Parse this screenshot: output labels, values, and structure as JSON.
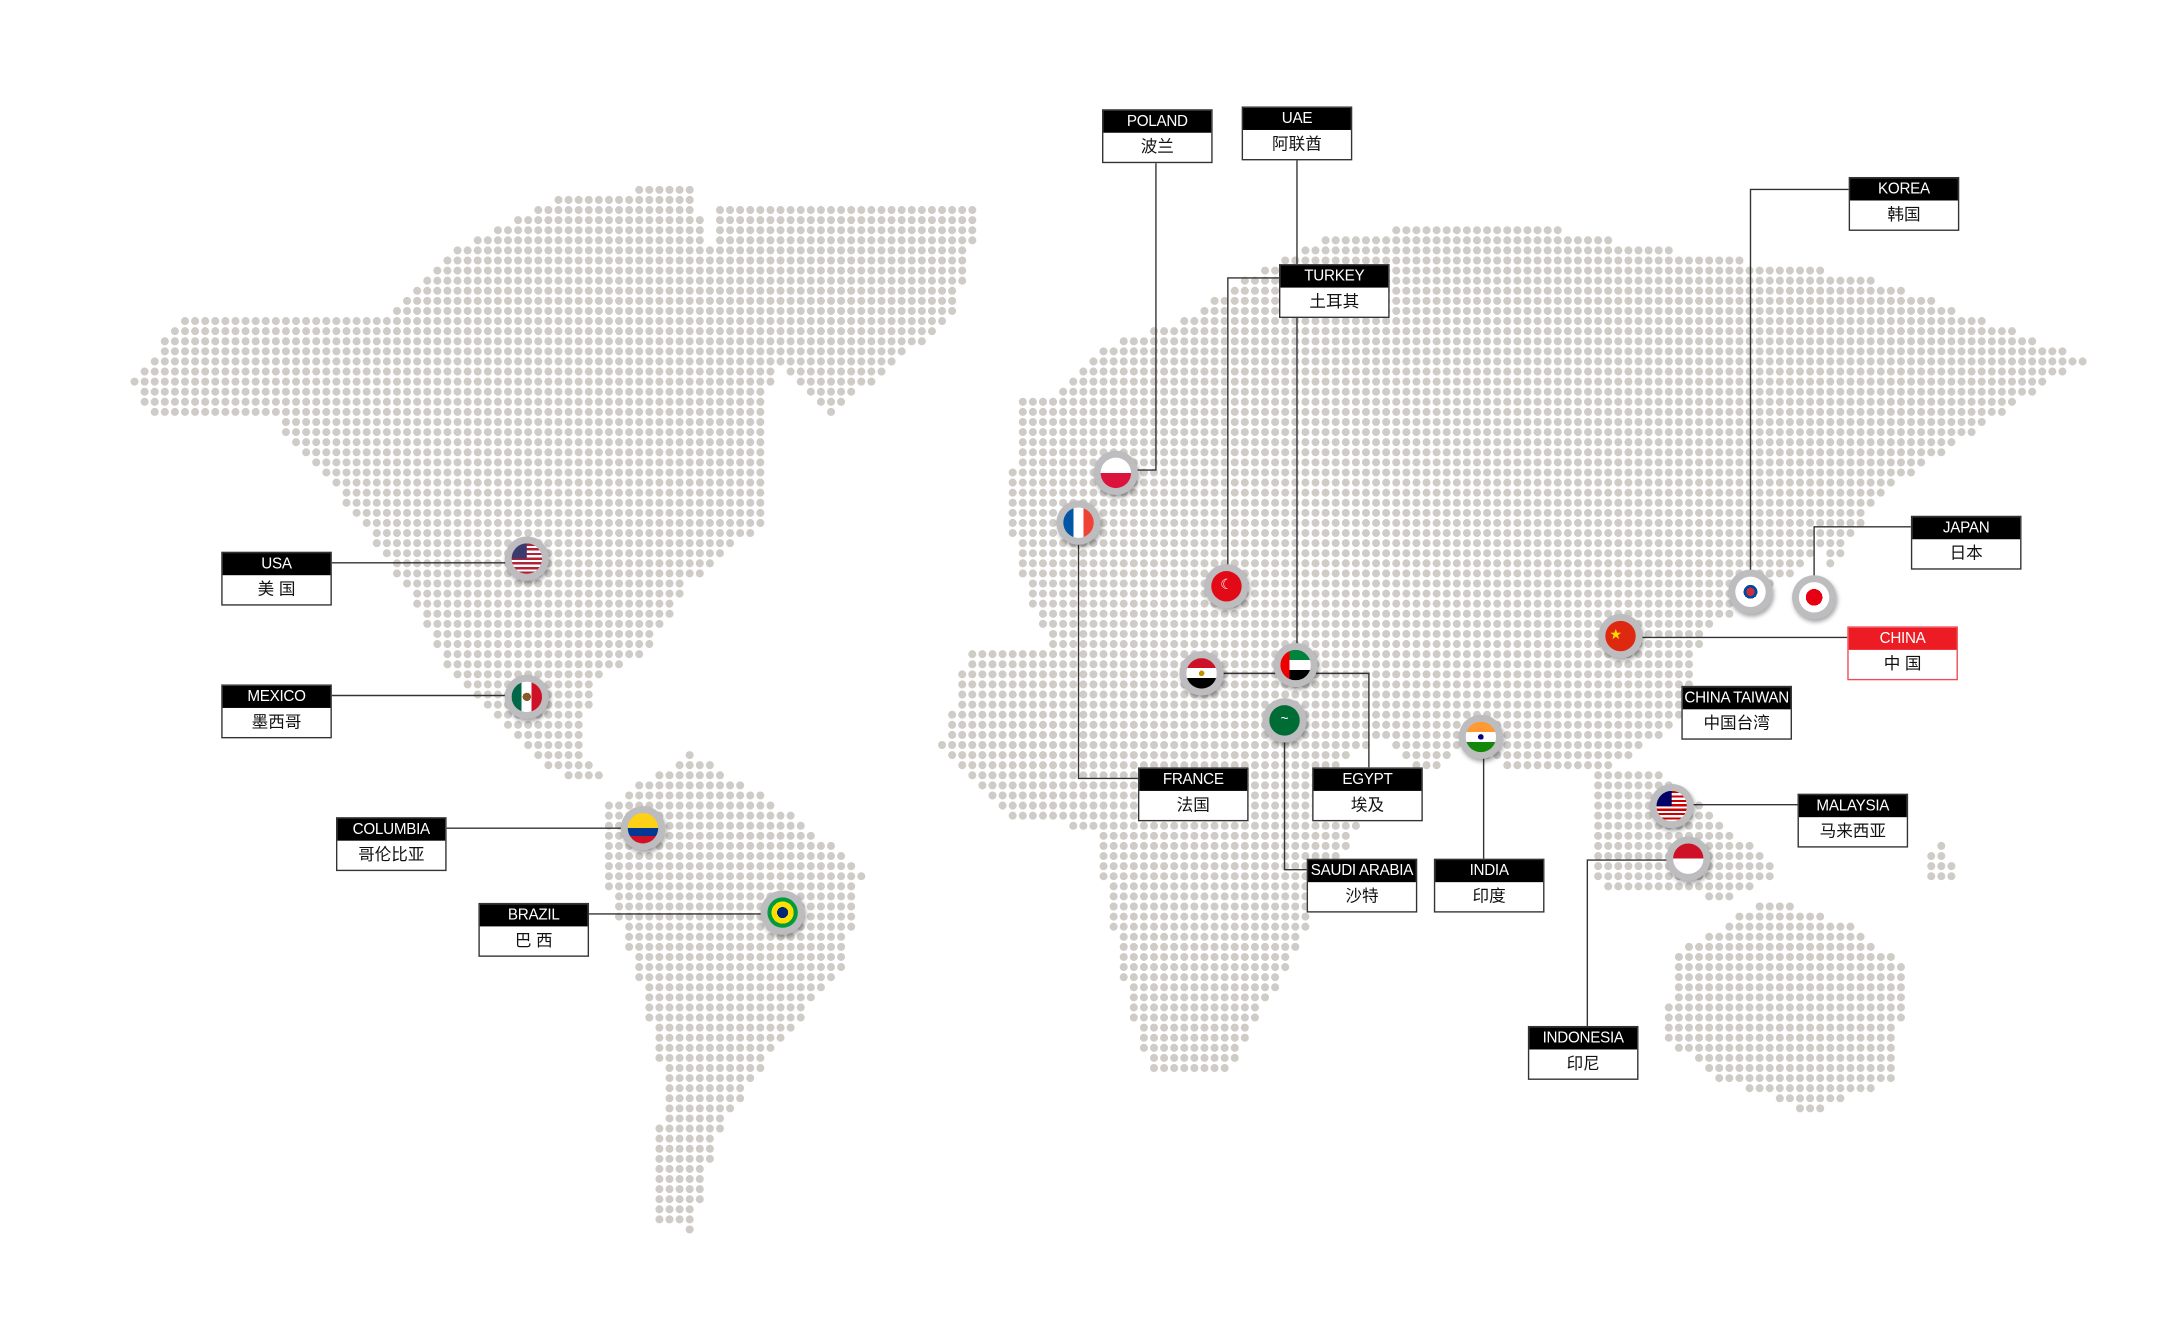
{
  "map": {
    "dot_color": "#cfccc8",
    "line_color": "#333333",
    "highlight_color": "#ed1c24"
  },
  "locations": [
    {
      "en": "POLAND",
      "zh": "波兰",
      "flag": "poland-flag-icon"
    },
    {
      "en": "UAE",
      "zh": "阿联酋",
      "flag": "uae-flag-icon"
    },
    {
      "en": "TURKEY",
      "zh": "土耳其",
      "flag": "turkey-flag-icon"
    },
    {
      "en": "KOREA",
      "zh": "韩国",
      "flag": "korea-flag-icon"
    },
    {
      "en": "JAPAN",
      "zh": "日本",
      "flag": "japan-flag-icon"
    },
    {
      "en": "USA",
      "zh": "美 国",
      "flag": "usa-flag-icon"
    },
    {
      "en": "MEXICO",
      "zh": "墨西哥",
      "flag": "mexico-flag-icon"
    },
    {
      "en": "COLUMBIA",
      "zh": "哥伦比亚",
      "flag": "colombia-flag-icon"
    },
    {
      "en": "BRAZIL",
      "zh": "巴 西",
      "flag": "brazil-flag-icon"
    },
    {
      "en": "FRANCE",
      "zh": "法国",
      "flag": "france-flag-icon"
    },
    {
      "en": "EGYPT",
      "zh": "埃及",
      "flag": "egypt-flag-icon"
    },
    {
      "en": "SAUDI ARABIA",
      "zh": "沙特",
      "flag": "saudi-arabia-flag-icon"
    },
    {
      "en": "INDIA",
      "zh": "印度",
      "flag": "india-flag-icon"
    },
    {
      "en": "CHINA",
      "zh": "中 国",
      "flag": "china-flag-icon",
      "highlight": true
    },
    {
      "en": "CHINA TAIWAN",
      "zh": "中国台湾"
    },
    {
      "en": "MALAYSIA",
      "zh": "马来西亚",
      "flag": "malaysia-flag-icon"
    },
    {
      "en": "INDONESIA",
      "zh": "印尼",
      "flag": "indonesia-flag-icon"
    }
  ]
}
